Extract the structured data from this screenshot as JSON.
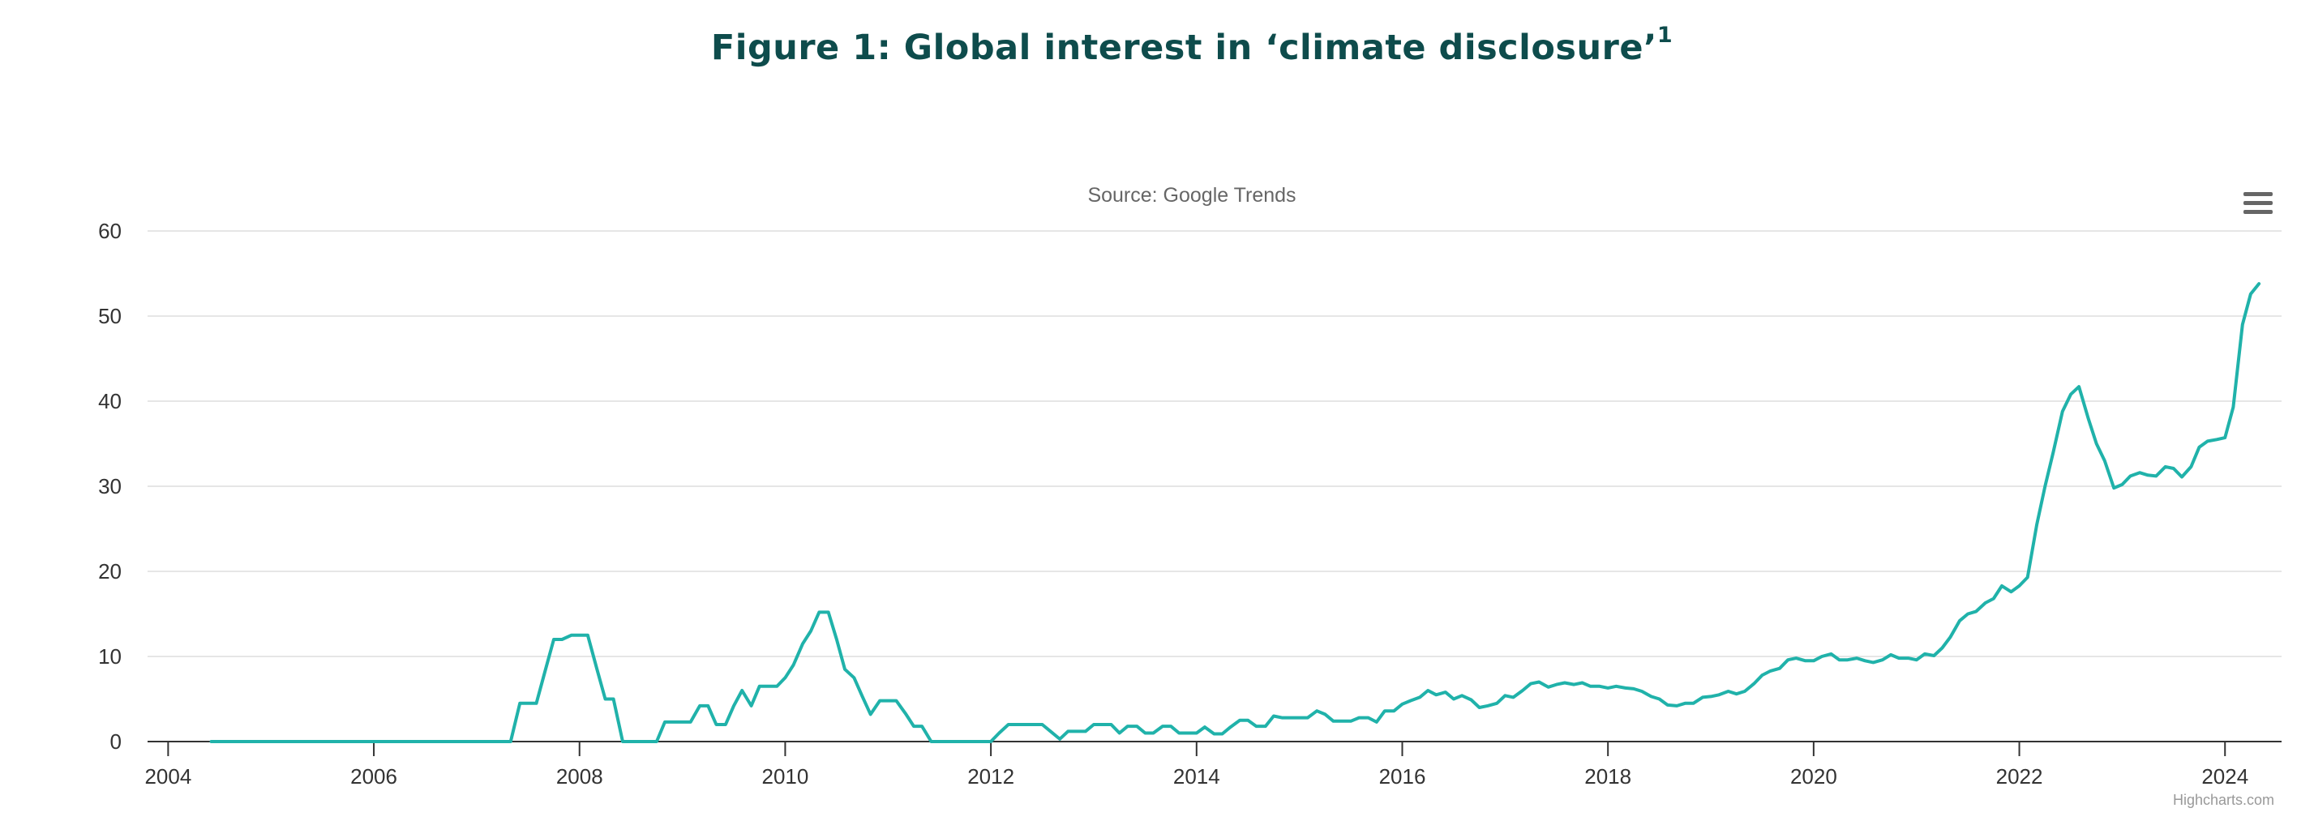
{
  "figure": {
    "title": "Figure 1: Global interest in ‘climate disclosure’",
    "title_footnote": "1"
  },
  "chart_data": {
    "type": "line",
    "subtitle": "Source: Google Trends",
    "credits": "Highcharts.com",
    "menu_icon": "hamburger-menu-icon",
    "line_color": "#20b2aa",
    "grid": true,
    "ylim": [
      0,
      60
    ],
    "y_ticks": [
      "0",
      "10",
      "20",
      "30",
      "40",
      "50",
      "60"
    ],
    "xlim": [
      2003.8,
      2024.55
    ],
    "x_ticks": [
      "2004",
      "2006",
      "2008",
      "2010",
      "2012",
      "2014",
      "2016",
      "2018",
      "2020",
      "2022",
      "2024"
    ],
    "series": [
      {
        "points": [
          [
            2004.42,
            0
          ],
          [
            2005.5,
            0
          ],
          [
            2006.5,
            0
          ],
          [
            2007.33,
            0
          ],
          [
            2007.42,
            4.5
          ],
          [
            2007.58,
            4.5
          ],
          [
            2007.67,
            8.5
          ],
          [
            2007.75,
            12
          ],
          [
            2007.83,
            12
          ],
          [
            2007.92,
            12.5
          ],
          [
            2008.0,
            12.5
          ],
          [
            2008.08,
            12.5
          ],
          [
            2008.17,
            8.5
          ],
          [
            2008.25,
            5
          ],
          [
            2008.33,
            5
          ],
          [
            2008.42,
            0
          ],
          [
            2008.5,
            0
          ],
          [
            2008.75,
            0
          ],
          [
            2008.83,
            2.3
          ],
          [
            2009.0,
            2.3
          ],
          [
            2009.08,
            2.3
          ],
          [
            2009.17,
            4.2
          ],
          [
            2009.25,
            4.2
          ],
          [
            2009.33,
            2.0
          ],
          [
            2009.42,
            2.0
          ],
          [
            2009.5,
            4.2
          ],
          [
            2009.58,
            6.0
          ],
          [
            2009.67,
            4.2
          ],
          [
            2009.75,
            6.5
          ],
          [
            2009.92,
            6.5
          ],
          [
            2010.0,
            7.5
          ],
          [
            2010.08,
            9
          ],
          [
            2010.17,
            11.5
          ],
          [
            2010.25,
            13
          ],
          [
            2010.33,
            15.2
          ],
          [
            2010.42,
            15.2
          ],
          [
            2010.5,
            12
          ],
          [
            2010.58,
            8.5
          ],
          [
            2010.67,
            7.5
          ],
          [
            2010.75,
            5.3
          ],
          [
            2010.83,
            3.2
          ],
          [
            2010.92,
            4.8
          ],
          [
            2011.0,
            4.8
          ],
          [
            2011.08,
            4.8
          ],
          [
            2011.17,
            3.3
          ],
          [
            2011.25,
            1.8
          ],
          [
            2011.33,
            1.8
          ],
          [
            2011.42,
            0
          ],
          [
            2011.5,
            0
          ],
          [
            2011.75,
            0
          ],
          [
            2011.92,
            0
          ],
          [
            2012.0,
            0
          ],
          [
            2012.08,
            1.0
          ],
          [
            2012.17,
            2.0
          ],
          [
            2012.5,
            2.0
          ],
          [
            2012.58,
            1.2
          ],
          [
            2012.67,
            0.3
          ],
          [
            2012.75,
            1.2
          ],
          [
            2012.92,
            1.2
          ],
          [
            2013.0,
            2.0
          ],
          [
            2013.17,
            2.0
          ],
          [
            2013.25,
            1.0
          ],
          [
            2013.33,
            1.8
          ],
          [
            2013.42,
            1.8
          ],
          [
            2013.5,
            1.0
          ],
          [
            2013.58,
            1.0
          ],
          [
            2013.67,
            1.8
          ],
          [
            2013.75,
            1.8
          ],
          [
            2013.83,
            1.0
          ],
          [
            2014.0,
            1.0
          ],
          [
            2014.08,
            1.7
          ],
          [
            2014.17,
            0.9
          ],
          [
            2014.25,
            0.9
          ],
          [
            2014.33,
            1.7
          ],
          [
            2014.42,
            2.5
          ],
          [
            2014.5,
            2.5
          ],
          [
            2014.58,
            1.8
          ],
          [
            2014.67,
            1.8
          ],
          [
            2014.75,
            3.0
          ],
          [
            2014.83,
            2.8
          ],
          [
            2015.0,
            2.8
          ],
          [
            2015.08,
            2.8
          ],
          [
            2015.17,
            3.6
          ],
          [
            2015.25,
            3.2
          ],
          [
            2015.33,
            2.4
          ],
          [
            2015.5,
            2.4
          ],
          [
            2015.58,
            2.8
          ],
          [
            2015.67,
            2.8
          ],
          [
            2015.75,
            2.3
          ],
          [
            2015.83,
            3.6
          ],
          [
            2015.92,
            3.6
          ],
          [
            2016.0,
            4.4
          ],
          [
            2016.08,
            4.8
          ],
          [
            2016.17,
            5.2
          ],
          [
            2016.25,
            6.0
          ],
          [
            2016.33,
            5.5
          ],
          [
            2016.42,
            5.8
          ],
          [
            2016.5,
            5.0
          ],
          [
            2016.58,
            5.4
          ],
          [
            2016.67,
            4.9
          ],
          [
            2016.75,
            4.0
          ],
          [
            2016.83,
            4.2
          ],
          [
            2016.92,
            4.5
          ],
          [
            2017.0,
            5.4
          ],
          [
            2017.08,
            5.2
          ],
          [
            2017.17,
            6.0
          ],
          [
            2017.25,
            6.8
          ],
          [
            2017.33,
            7.0
          ],
          [
            2017.42,
            6.4
          ],
          [
            2017.5,
            6.7
          ],
          [
            2017.58,
            6.9
          ],
          [
            2017.67,
            6.7
          ],
          [
            2017.75,
            6.9
          ],
          [
            2017.83,
            6.5
          ],
          [
            2017.92,
            6.5
          ],
          [
            2018.0,
            6.3
          ],
          [
            2018.08,
            6.5
          ],
          [
            2018.17,
            6.3
          ],
          [
            2018.25,
            6.2
          ],
          [
            2018.33,
            5.9
          ],
          [
            2018.42,
            5.3
          ],
          [
            2018.5,
            5.0
          ],
          [
            2018.58,
            4.3
          ],
          [
            2018.67,
            4.2
          ],
          [
            2018.75,
            4.5
          ],
          [
            2018.83,
            4.5
          ],
          [
            2018.92,
            5.2
          ],
          [
            2019.0,
            5.3
          ],
          [
            2019.08,
            5.5
          ],
          [
            2019.17,
            5.9
          ],
          [
            2019.25,
            5.6
          ],
          [
            2019.33,
            5.9
          ],
          [
            2019.42,
            6.8
          ],
          [
            2019.5,
            7.8
          ],
          [
            2019.58,
            8.3
          ],
          [
            2019.67,
            8.6
          ],
          [
            2019.75,
            9.6
          ],
          [
            2019.83,
            9.8
          ],
          [
            2019.92,
            9.5
          ],
          [
            2020.0,
            9.5
          ],
          [
            2020.08,
            10.0
          ],
          [
            2020.17,
            10.3
          ],
          [
            2020.25,
            9.6
          ],
          [
            2020.33,
            9.6
          ],
          [
            2020.42,
            9.8
          ],
          [
            2020.5,
            9.5
          ],
          [
            2020.58,
            9.3
          ],
          [
            2020.67,
            9.6
          ],
          [
            2020.75,
            10.2
          ],
          [
            2020.83,
            9.8
          ],
          [
            2020.92,
            9.8
          ],
          [
            2021.0,
            9.6
          ],
          [
            2021.08,
            10.3
          ],
          [
            2021.17,
            10.1
          ],
          [
            2021.25,
            11.0
          ],
          [
            2021.33,
            12.3
          ],
          [
            2021.42,
            14.2
          ],
          [
            2021.5,
            15.0
          ],
          [
            2021.58,
            15.3
          ],
          [
            2021.67,
            16.3
          ],
          [
            2021.75,
            16.8
          ],
          [
            2021.83,
            18.3
          ],
          [
            2021.92,
            17.6
          ],
          [
            2022.0,
            18.3
          ],
          [
            2022.08,
            19.3
          ],
          [
            2022.17,
            25.5
          ],
          [
            2022.25,
            30.0
          ],
          [
            2022.33,
            34.0
          ],
          [
            2022.42,
            38.8
          ],
          [
            2022.5,
            40.8
          ],
          [
            2022.58,
            41.7
          ],
          [
            2022.67,
            38.0
          ],
          [
            2022.75,
            35.0
          ],
          [
            2022.83,
            33.0
          ],
          [
            2022.92,
            29.8
          ],
          [
            2023.0,
            30.2
          ],
          [
            2023.08,
            31.2
          ],
          [
            2023.17,
            31.6
          ],
          [
            2023.25,
            31.3
          ],
          [
            2023.33,
            31.2
          ],
          [
            2023.42,
            32.3
          ],
          [
            2023.5,
            32.1
          ],
          [
            2023.58,
            31.1
          ],
          [
            2023.67,
            32.3
          ],
          [
            2023.75,
            34.6
          ],
          [
            2023.83,
            35.3
          ],
          [
            2023.92,
            35.5
          ],
          [
            2024.0,
            35.7
          ],
          [
            2024.08,
            39.3
          ],
          [
            2024.17,
            49.0
          ],
          [
            2024.25,
            52.6
          ],
          [
            2024.33,
            53.8
          ]
        ]
      }
    ]
  }
}
